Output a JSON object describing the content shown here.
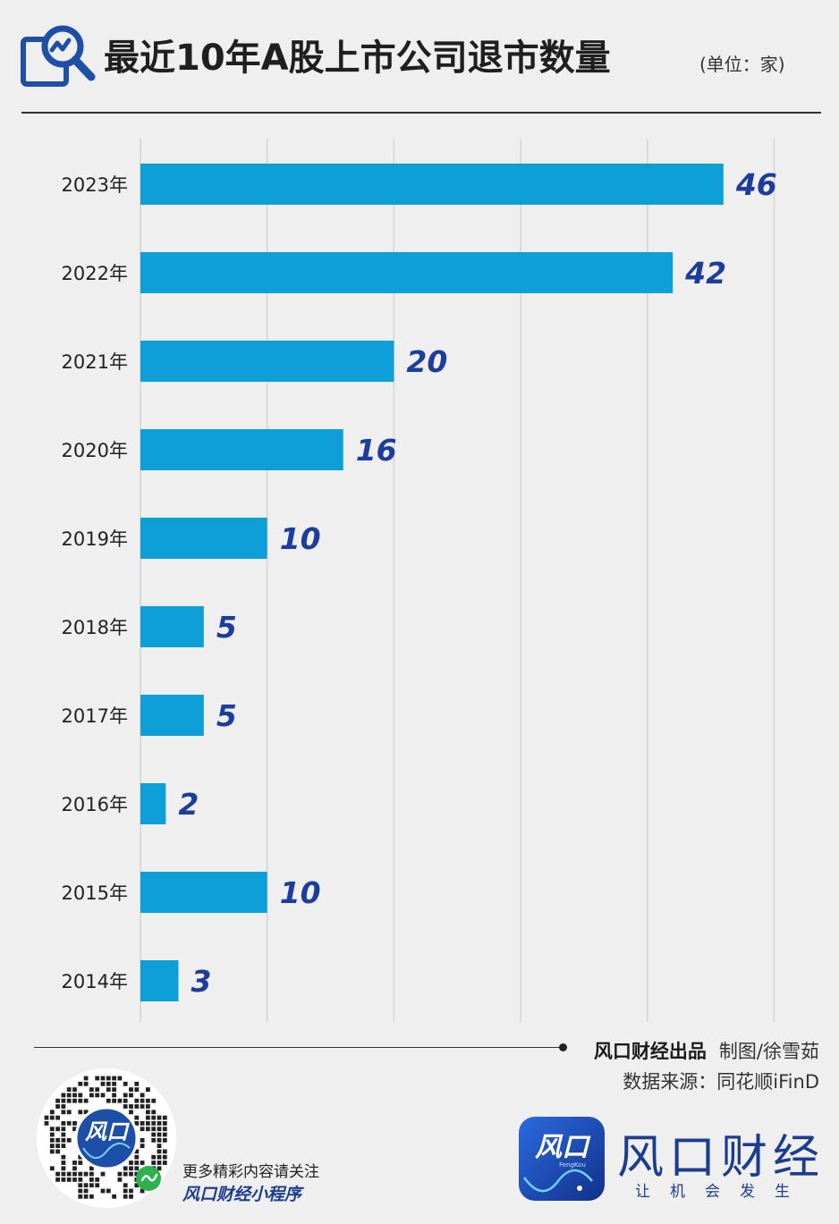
{
  "header": {
    "title": "最近10年A股上市公司退市数量",
    "unit": "(单位：家)"
  },
  "chart_data": {
    "type": "bar",
    "orientation": "horizontal",
    "categories": [
      "2023年",
      "2022年",
      "2021年",
      "2020年",
      "2019年",
      "2018年",
      "2017年",
      "2016年",
      "2015年",
      "2014年"
    ],
    "values": [
      46,
      42,
      20,
      16,
      10,
      5,
      5,
      2,
      10,
      3
    ],
    "title": "最近10年A股上市公司退市数量",
    "xlim": [
      0,
      50
    ],
    "grid": true,
    "bar_color": "#0e9fd8",
    "label_color": "#1c3d9e"
  },
  "footer": {
    "brand": "风口财经出品",
    "credit": "制图/徐雪茹",
    "source": "数据来源：同花顺iFinD",
    "promo_line1": "更多精彩内容请关注",
    "promo_line2": "风口财经小程序",
    "brand_name": "风口财经",
    "slogan": "让机会发生",
    "logo_text": "风口",
    "logo_subtext": "FengKou"
  },
  "colors": {
    "background": "#efefef",
    "brand_blue": "#1c3d8f",
    "icon_blue": "#1d4fa8"
  }
}
